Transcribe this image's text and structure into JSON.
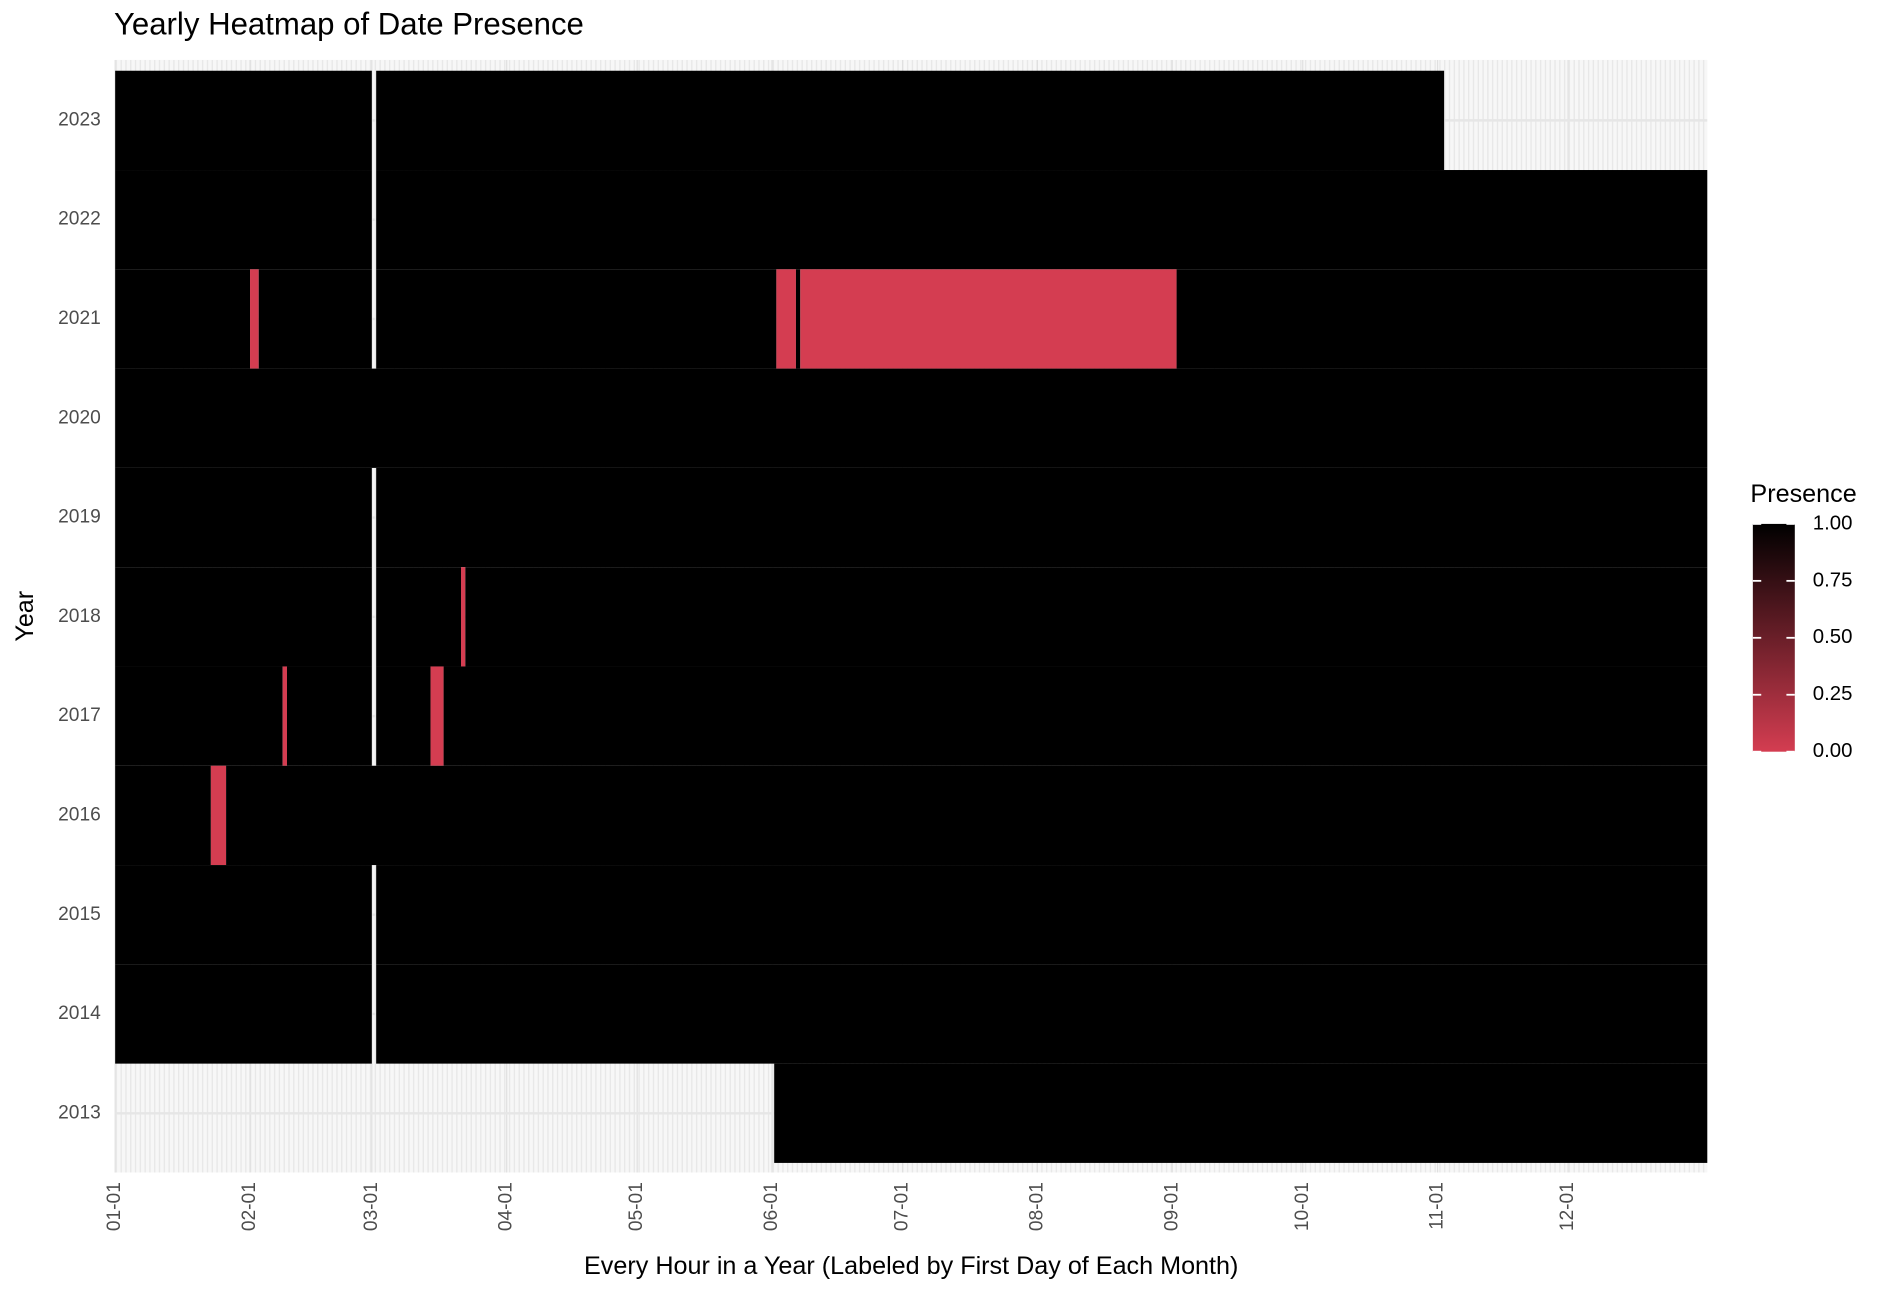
{
  "chart_data": {
    "type": "heatmap",
    "title": "Yearly Heatmap of Date Presence",
    "x_label": "Every Hour in a Year (Labeled by First Day of Each Month)",
    "y_label": "Year",
    "legend_title": "Presence",
    "low_color": "#d43d51",
    "high_color": "#000000",
    "xlim": [
      0,
      366
    ],
    "xticks": [
      {
        "value": 0,
        "label": "01-01"
      },
      {
        "value": 31,
        "label": "02-01"
      },
      {
        "value": 59,
        "label": "03-01"
      },
      {
        "value": 90,
        "label": "04-01"
      },
      {
        "value": 120,
        "label": "05-01"
      },
      {
        "value": 151,
        "label": "06-01"
      },
      {
        "value": 181,
        "label": "07-01"
      },
      {
        "value": 212,
        "label": "08-01"
      },
      {
        "value": 243,
        "label": "09-01"
      },
      {
        "value": 273,
        "label": "10-01"
      },
      {
        "value": 304,
        "label": "11-01"
      },
      {
        "value": 334,
        "label": "12-01"
      }
    ],
    "legend_lim": [
      0,
      1
    ],
    "legend_ticks": [
      {
        "value": 1,
        "label": "1.00"
      },
      {
        "value": 0.75,
        "label": "0.75"
      },
      {
        "value": 0.5,
        "label": "0.50"
      },
      {
        "value": 0.25,
        "label": "0.25"
      },
      {
        "value": 0,
        "label": "0.00"
      }
    ],
    "rows": [
      {
        "year": "2023",
        "tiles": [
          {
            "start": 0,
            "end": 59,
            "value": 1
          },
          {
            "start": 60,
            "end": 305.5,
            "value": 1
          }
        ]
      },
      {
        "year": "2022",
        "tiles": [
          {
            "start": 0,
            "end": 59,
            "value": 1
          },
          {
            "start": 60,
            "end": 366,
            "value": 1
          }
        ]
      },
      {
        "year": "2021",
        "tiles": [
          {
            "start": 0,
            "end": 31,
            "value": 1
          },
          {
            "start": 31,
            "end": 33,
            "value": 0
          },
          {
            "start": 33,
            "end": 59,
            "value": 1
          },
          {
            "start": 60,
            "end": 152,
            "value": 1
          },
          {
            "start": 152,
            "end": 156.5,
            "value": 0
          },
          {
            "start": 156.5,
            "end": 157.5,
            "value": 1
          },
          {
            "start": 157.5,
            "end": 244,
            "value": 0
          },
          {
            "start": 244,
            "end": 366,
            "value": 1
          }
        ]
      },
      {
        "year": "2020",
        "tiles": [
          {
            "start": 0,
            "end": 366,
            "value": 1
          }
        ]
      },
      {
        "year": "2019",
        "tiles": [
          {
            "start": 0,
            "end": 59,
            "value": 1
          },
          {
            "start": 60,
            "end": 366,
            "value": 1
          }
        ]
      },
      {
        "year": "2018",
        "tiles": [
          {
            "start": 0,
            "end": 59,
            "value": 1
          },
          {
            "start": 60,
            "end": 79.5,
            "value": 1
          },
          {
            "start": 79.5,
            "end": 80.5,
            "value": 0
          },
          {
            "start": 80.5,
            "end": 366,
            "value": 1
          }
        ]
      },
      {
        "year": "2017",
        "tiles": [
          {
            "start": 0,
            "end": 38.5,
            "value": 1
          },
          {
            "start": 38.5,
            "end": 39.5,
            "value": 0
          },
          {
            "start": 39.5,
            "end": 59,
            "value": 1
          },
          {
            "start": 60,
            "end": 72.5,
            "value": 1
          },
          {
            "start": 72.5,
            "end": 75.5,
            "value": 0
          },
          {
            "start": 75.5,
            "end": 366,
            "value": 1
          }
        ]
      },
      {
        "year": "2016",
        "tiles": [
          {
            "start": 0,
            "end": 22,
            "value": 1
          },
          {
            "start": 22,
            "end": 25.5,
            "value": 0
          },
          {
            "start": 25.5,
            "end": 366,
            "value": 1
          }
        ]
      },
      {
        "year": "2015",
        "tiles": [
          {
            "start": 0,
            "end": 59,
            "value": 1
          },
          {
            "start": 60,
            "end": 366,
            "value": 1
          }
        ]
      },
      {
        "year": "2014",
        "tiles": [
          {
            "start": 0,
            "end": 59,
            "value": 1
          },
          {
            "start": 60,
            "end": 366,
            "value": 1
          }
        ]
      },
      {
        "year": "2013",
        "tiles": [
          {
            "start": 151.5,
            "end": 366,
            "value": 1
          }
        ]
      }
    ]
  }
}
